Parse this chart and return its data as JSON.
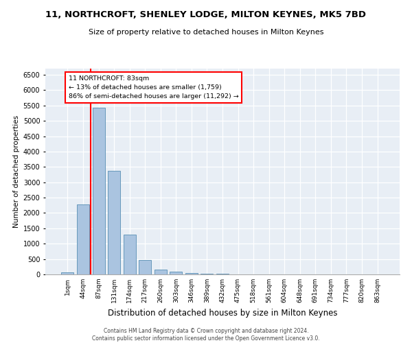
{
  "title": "11, NORTHCROFT, SHENLEY LODGE, MILTON KEYNES, MK5 7BD",
  "subtitle": "Size of property relative to detached houses in Milton Keynes",
  "xlabel": "Distribution of detached houses by size in Milton Keynes",
  "ylabel": "Number of detached properties",
  "footer_line1": "Contains HM Land Registry data © Crown copyright and database right 2024.",
  "footer_line2": "Contains public sector information licensed under the Open Government Licence v3.0.",
  "bar_labels": [
    "1sqm",
    "44sqm",
    "87sqm",
    "131sqm",
    "174sqm",
    "217sqm",
    "260sqm",
    "303sqm",
    "346sqm",
    "389sqm",
    "432sqm",
    "475sqm",
    "518sqm",
    "561sqm",
    "604sqm",
    "648sqm",
    "691sqm",
    "734sqm",
    "777sqm",
    "820sqm",
    "863sqm"
  ],
  "bar_values": [
    75,
    2270,
    5430,
    3380,
    1295,
    480,
    160,
    90,
    55,
    30,
    15,
    10,
    5,
    3,
    2,
    1,
    1,
    0,
    0,
    0,
    0
  ],
  "bar_color": "#aac4e0",
  "bar_edge_color": "#6699bb",
  "background_color": "#e8eef5",
  "grid_color": "#ffffff",
  "annotation_line1": "11 NORTHCROFT: 83sqm",
  "annotation_line2": "← 13% of detached houses are smaller (1,759)",
  "annotation_line3": "86% of semi-detached houses are larger (11,292) →",
  "red_line_x": 1.5,
  "ylim": [
    0,
    6700
  ],
  "yticks": [
    0,
    500,
    1000,
    1500,
    2000,
    2500,
    3000,
    3500,
    4000,
    4500,
    5000,
    5500,
    6000,
    6500
  ]
}
